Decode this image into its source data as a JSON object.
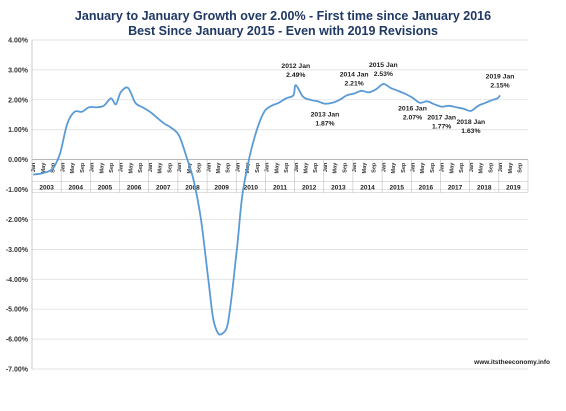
{
  "title_lines": [
    "January to January Growth over 2.00%  - First time since January 2016",
    "Best Since January 2015 - Even with 2019 Revisions"
  ],
  "source": "www.itstheeconomy.info",
  "colors": {
    "line": "#5b9bd5",
    "title": "#1f3864",
    "grid": "#d9d9d9",
    "axis": "#bfbfbf"
  },
  "chart_data": {
    "type": "line",
    "ylim": [
      -7,
      4
    ],
    "ytick_labels": [
      "4.00%",
      "3.00%",
      "2.00%",
      "1.00%",
      "0.00%",
      "-1.00%",
      "-2.00%",
      "-3.00%",
      "-4.00%",
      "-5.00%",
      "-6.00%",
      "-7.00%"
    ],
    "x_start": "2003-01",
    "month_tick_labels": [
      "Jan",
      "May",
      "Sep"
    ],
    "years": [
      "2003",
      "2004",
      "2005",
      "2006",
      "2007",
      "2008",
      "2009",
      "2010",
      "2011",
      "2012",
      "2013",
      "2014",
      "2015",
      "2016",
      "2017",
      "2018",
      "2019"
    ],
    "series": [
      {
        "points": [
          [
            "2003-01",
            -0.5
          ],
          [
            "2003-05",
            -0.45
          ],
          [
            "2003-09",
            -0.3
          ],
          [
            "2003-12",
            0.2
          ],
          [
            "2004-03",
            1.2
          ],
          [
            "2004-06",
            1.6
          ],
          [
            "2004-09",
            1.6
          ],
          [
            "2004-12",
            1.75
          ],
          [
            "2005-03",
            1.75
          ],
          [
            "2005-06",
            1.8
          ],
          [
            "2005-09",
            2.05
          ],
          [
            "2005-11",
            1.85
          ],
          [
            "2006-01",
            2.25
          ],
          [
            "2006-04",
            2.4
          ],
          [
            "2006-07",
            1.9
          ],
          [
            "2006-10",
            1.75
          ],
          [
            "2007-01",
            1.6
          ],
          [
            "2007-04",
            1.4
          ],
          [
            "2007-07",
            1.2
          ],
          [
            "2007-10",
            1.05
          ],
          [
            "2008-01",
            0.8
          ],
          [
            "2008-04",
            0.1
          ],
          [
            "2008-07",
            -0.7
          ],
          [
            "2008-10",
            -2.0
          ],
          [
            "2009-01",
            -4.0
          ],
          [
            "2009-03",
            -5.3
          ],
          [
            "2009-05",
            -5.8
          ],
          [
            "2009-07",
            -5.8
          ],
          [
            "2009-09",
            -5.5
          ],
          [
            "2009-11",
            -4.3
          ],
          [
            "2010-01",
            -2.8
          ],
          [
            "2010-03",
            -1.2
          ],
          [
            "2010-06",
            0.1
          ],
          [
            "2010-09",
            1.0
          ],
          [
            "2010-12",
            1.6
          ],
          [
            "2011-03",
            1.8
          ],
          [
            "2011-06",
            1.9
          ],
          [
            "2011-09",
            2.05
          ],
          [
            "2011-12",
            2.15
          ],
          [
            "2012-01",
            2.49
          ],
          [
            "2012-04",
            2.1
          ],
          [
            "2012-07",
            2.0
          ],
          [
            "2012-10",
            1.95
          ],
          [
            "2013-01",
            1.87
          ],
          [
            "2013-04",
            1.9
          ],
          [
            "2013-07",
            2.0
          ],
          [
            "2013-10",
            2.15
          ],
          [
            "2014-01",
            2.21
          ],
          [
            "2014-04",
            2.3
          ],
          [
            "2014-07",
            2.25
          ],
          [
            "2014-10",
            2.35
          ],
          [
            "2015-01",
            2.53
          ],
          [
            "2015-04",
            2.4
          ],
          [
            "2015-07",
            2.3
          ],
          [
            "2015-10",
            2.2
          ],
          [
            "2016-01",
            2.07
          ],
          [
            "2016-04",
            1.9
          ],
          [
            "2016-07",
            1.95
          ],
          [
            "2016-10",
            1.85
          ],
          [
            "2017-01",
            1.77
          ],
          [
            "2017-04",
            1.8
          ],
          [
            "2017-07",
            1.75
          ],
          [
            "2017-10",
            1.7
          ],
          [
            "2018-01",
            1.63
          ],
          [
            "2018-04",
            1.8
          ],
          [
            "2018-07",
            1.9
          ],
          [
            "2018-10",
            2.0
          ],
          [
            "2018-12",
            2.05
          ],
          [
            "2019-01",
            2.15
          ]
        ]
      }
    ],
    "annotations": [
      {
        "label": "2012 Jan",
        "value": "2.49%",
        "x": "2012-01",
        "y": 2.49,
        "pos": "above"
      },
      {
        "label": "2013 Jan",
        "value": "1.87%",
        "x": "2013-01",
        "y": 1.87,
        "pos": "below"
      },
      {
        "label": "2014 Jan",
        "value": "2.21%",
        "x": "2014-01",
        "y": 2.21,
        "pos": "above"
      },
      {
        "label": "2015 Jan",
        "value": "2.53%",
        "x": "2015-01",
        "y": 2.53,
        "pos": "above"
      },
      {
        "label": "2016 Jan",
        "value": "2.07%",
        "x": "2016-01",
        "y": 2.07,
        "pos": "below"
      },
      {
        "label": "2017 Jan",
        "value": "1.77%",
        "x": "2017-01",
        "y": 1.77,
        "pos": "below"
      },
      {
        "label": "2018 Jan",
        "value": "1.63%",
        "x": "2018-01",
        "y": 1.63,
        "pos": "below"
      },
      {
        "label": "2019 Jan",
        "value": "2.15%",
        "x": "2019-01",
        "y": 2.15,
        "pos": "above"
      }
    ]
  }
}
